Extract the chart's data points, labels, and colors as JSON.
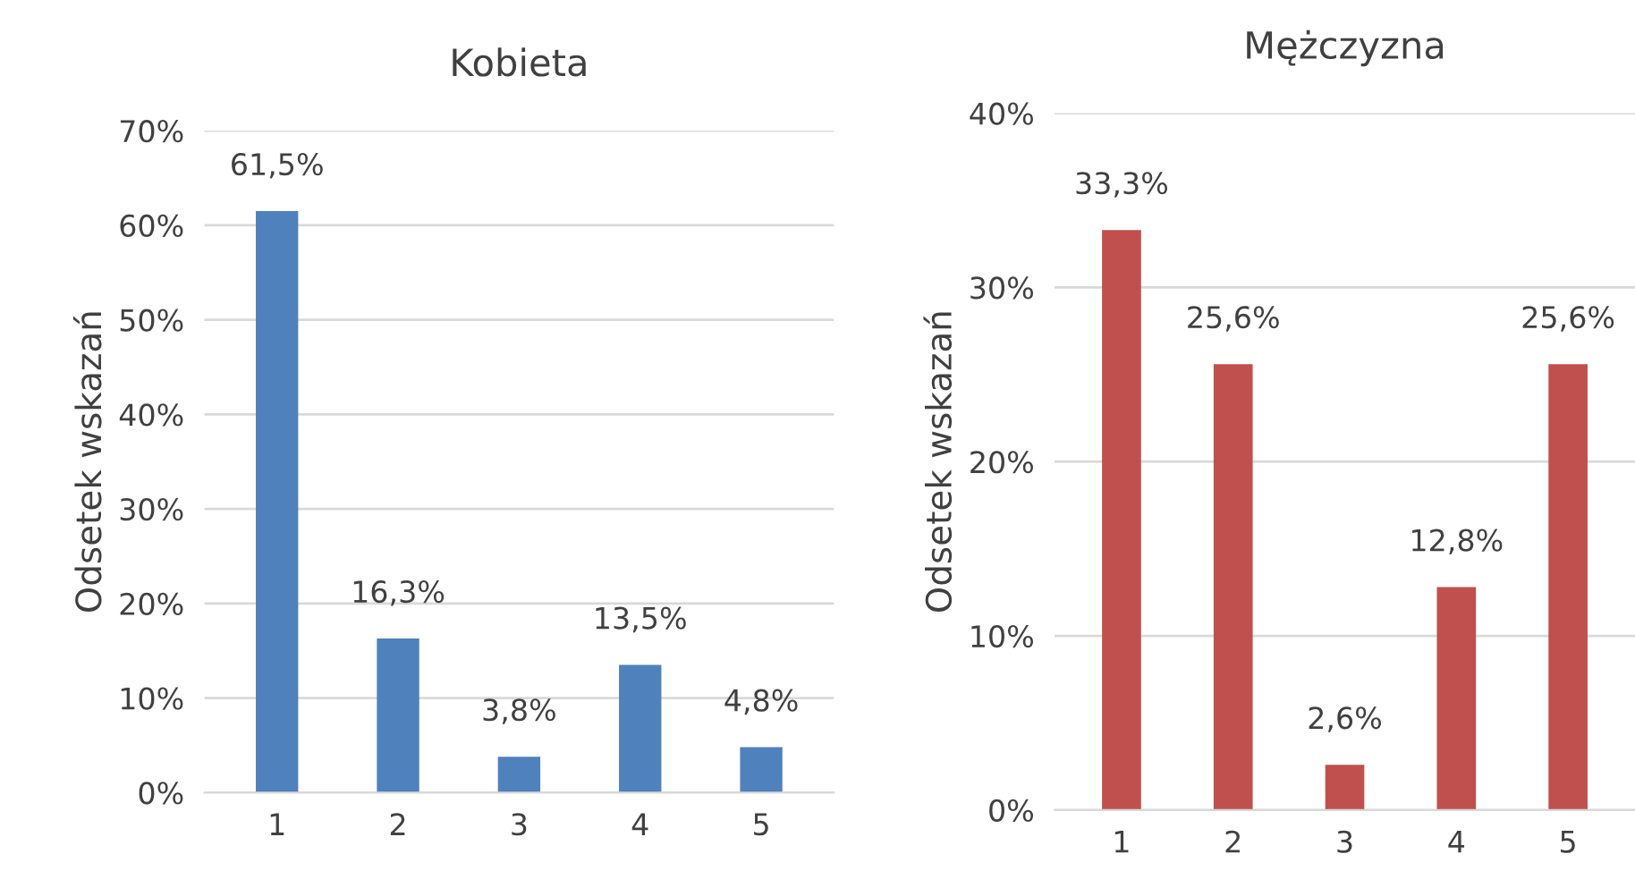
{
  "chart_data": [
    {
      "type": "bar",
      "title": "Kobieta",
      "ylabel": "Odsetek wskazań",
      "categories": [
        "1",
        "2",
        "3",
        "4",
        "5"
      ],
      "series": [
        {
          "color": "#4f81bd",
          "values": [
            61.5,
            16.3,
            3.8,
            13.5,
            4.8
          ],
          "value_labels": [
            "61,5%",
            "16,3%",
            "3,8%",
            "13,5%",
            "4,8%"
          ]
        }
      ],
      "ylim": [
        0,
        70
      ],
      "yticks": [
        {
          "value": 0,
          "label": "0%"
        },
        {
          "value": 10,
          "label": "10%"
        },
        {
          "value": 20,
          "label": "20%"
        },
        {
          "value": 30,
          "label": "30%"
        },
        {
          "value": 40,
          "label": "40%"
        },
        {
          "value": 50,
          "label": "50%"
        },
        {
          "value": 60,
          "label": "60%"
        },
        {
          "value": 70,
          "label": "70%"
        }
      ],
      "grid": "y",
      "legend": false
    },
    {
      "type": "bar",
      "title": "Mężczyzna",
      "ylabel": "Odsetek wskazań",
      "categories": [
        "1",
        "2",
        "3",
        "4",
        "5"
      ],
      "series": [
        {
          "color": "#c0504d",
          "values": [
            33.3,
            25.6,
            2.6,
            12.8,
            25.6
          ],
          "value_labels": [
            "33,3%",
            "25,6%",
            "2,6%",
            "12,8%",
            "25,6%"
          ]
        }
      ],
      "ylim": [
        0,
        40
      ],
      "yticks": [
        {
          "value": 0,
          "label": "0%"
        },
        {
          "value": 10,
          "label": "10%"
        },
        {
          "value": 20,
          "label": "20%"
        },
        {
          "value": 30,
          "label": "30%"
        },
        {
          "value": 40,
          "label": "40%"
        }
      ],
      "grid": "y",
      "legend": false
    }
  ]
}
